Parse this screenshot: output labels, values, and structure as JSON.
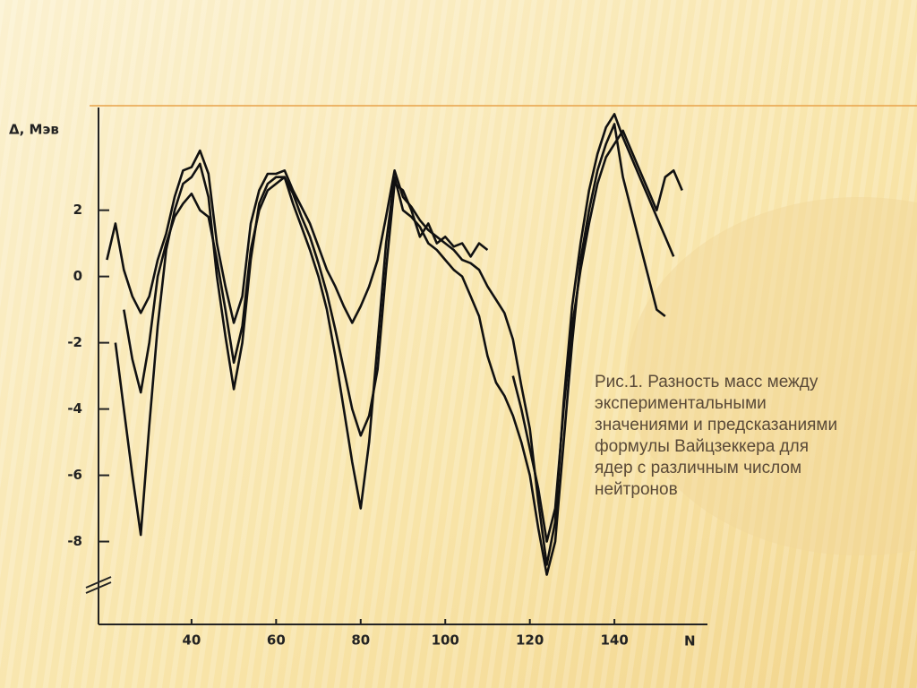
{
  "chart_data": {
    "type": "line",
    "y_label": "Δ, Мэв",
    "x_label": "N",
    "x": [
      20,
      22,
      24,
      26,
      28,
      30,
      32,
      34,
      36,
      38,
      40,
      42,
      44,
      46,
      48,
      50,
      52,
      54,
      56,
      58,
      60,
      62,
      64,
      66,
      68,
      70,
      72,
      74,
      76,
      78,
      80,
      82,
      84,
      86,
      88,
      90,
      92,
      94,
      96,
      98,
      100,
      102,
      104,
      106,
      108,
      110,
      112,
      114,
      116,
      118,
      120,
      122,
      124,
      126,
      128,
      130,
      132,
      134,
      136,
      138,
      140,
      142,
      144,
      146,
      148,
      150,
      152,
      154,
      156
    ],
    "series": [
      {
        "color": "#111111",
        "values": [
          0.5,
          1.6,
          0.2,
          -0.6,
          -1.1,
          -0.6,
          0.5,
          1.3,
          2.4,
          3.2,
          3.3,
          3.8,
          3.1,
          1.0,
          -0.3,
          -1.4,
          -0.6,
          1.6,
          2.6,
          3.1,
          3.1,
          3.2,
          2.6,
          2.1,
          1.6,
          0.9,
          0.2,
          -0.3,
          -0.9,
          -1.4,
          -0.9,
          -0.3,
          0.5,
          1.8,
          3.2,
          2.4,
          2.1,
          1.7,
          1.4,
          1.2,
          1.0,
          0.8,
          0.5,
          0.4,
          0.2,
          -0.3,
          -0.7,
          -1.1,
          -1.9,
          -3.3,
          -4.6,
          -6.8,
          -8.7,
          -7.4,
          -3.8,
          -0.9,
          1.0,
          2.6,
          3.7,
          4.5,
          4.9,
          4.2,
          3.6,
          3.0,
          2.4,
          1.8,
          1.2,
          0.6,
          null
        ]
      },
      {
        "color": "#111111",
        "values": [
          null,
          -2,
          -4,
          -6,
          -7.8,
          -4.5,
          -1.5,
          0.8,
          2.0,
          2.8,
          3.0,
          3.4,
          2.4,
          0.0,
          -1.8,
          -3.4,
          -2.0,
          0.5,
          2.2,
          2.8,
          3.0,
          3.0,
          2.2,
          1.5,
          0.8,
          0.0,
          -1.0,
          -2.4,
          -4.0,
          -5.6,
          -7.0,
          -5.0,
          -2.0,
          1.0,
          3.0,
          2.0,
          1.8,
          1.5,
          1.0,
          0.8,
          0.5,
          0.2,
          0.0,
          -0.6,
          -1.2,
          -2.4,
          -3.2,
          -3.6,
          -4.2,
          -5.0,
          -6.0,
          -7.6,
          -9.0,
          -8.0,
          -5.0,
          -2.0,
          0.5,
          2.0,
          3.2,
          4.0,
          4.6,
          3.0,
          2.0,
          1.0,
          0.0,
          -1.0,
          -1.2,
          null,
          null
        ]
      },
      {
        "color": "#111111",
        "values": [
          null,
          null,
          -1,
          -2.5,
          -3.5,
          -2,
          0,
          1,
          1.8,
          2.2,
          2.5,
          2.0,
          1.8,
          0.5,
          -1.0,
          -2.6,
          -1.5,
          0.8,
          2.0,
          2.6,
          2.8,
          3.0,
          2.5,
          1.8,
          1.2,
          0.4,
          -0.5,
          -1.6,
          -2.8,
          -4.0,
          -4.8,
          -4.2,
          -2.8,
          0.2,
          2.8,
          2.6,
          2.0,
          1.2,
          1.6,
          1.0,
          1.2,
          0.9,
          1.0,
          0.6,
          1.0,
          0.8,
          null,
          null,
          -3.0,
          -4.0,
          -5.2,
          -6.4,
          -8.0,
          -7.0,
          -4.0,
          -1.5,
          0.2,
          1.6,
          2.8,
          3.6,
          4.0,
          4.4,
          3.8,
          3.2,
          2.6,
          2.0,
          3.0,
          3.2,
          2.6
        ]
      }
    ],
    "xlim": [
      18,
      162
    ],
    "xticks": [
      40,
      60,
      80,
      100,
      120,
      140
    ],
    "ylim": [
      -10.5,
      5.1
    ],
    "yticks": [
      2,
      0,
      -2,
      -4,
      -6,
      -8
    ]
  },
  "caption": [
    "Рис.1. Разность масс между",
    "экспериментальными",
    "значениями и предсказаниями",
    "формулы Вайцзеккера для",
    "ядер с различным числом",
    "нейтронов"
  ]
}
